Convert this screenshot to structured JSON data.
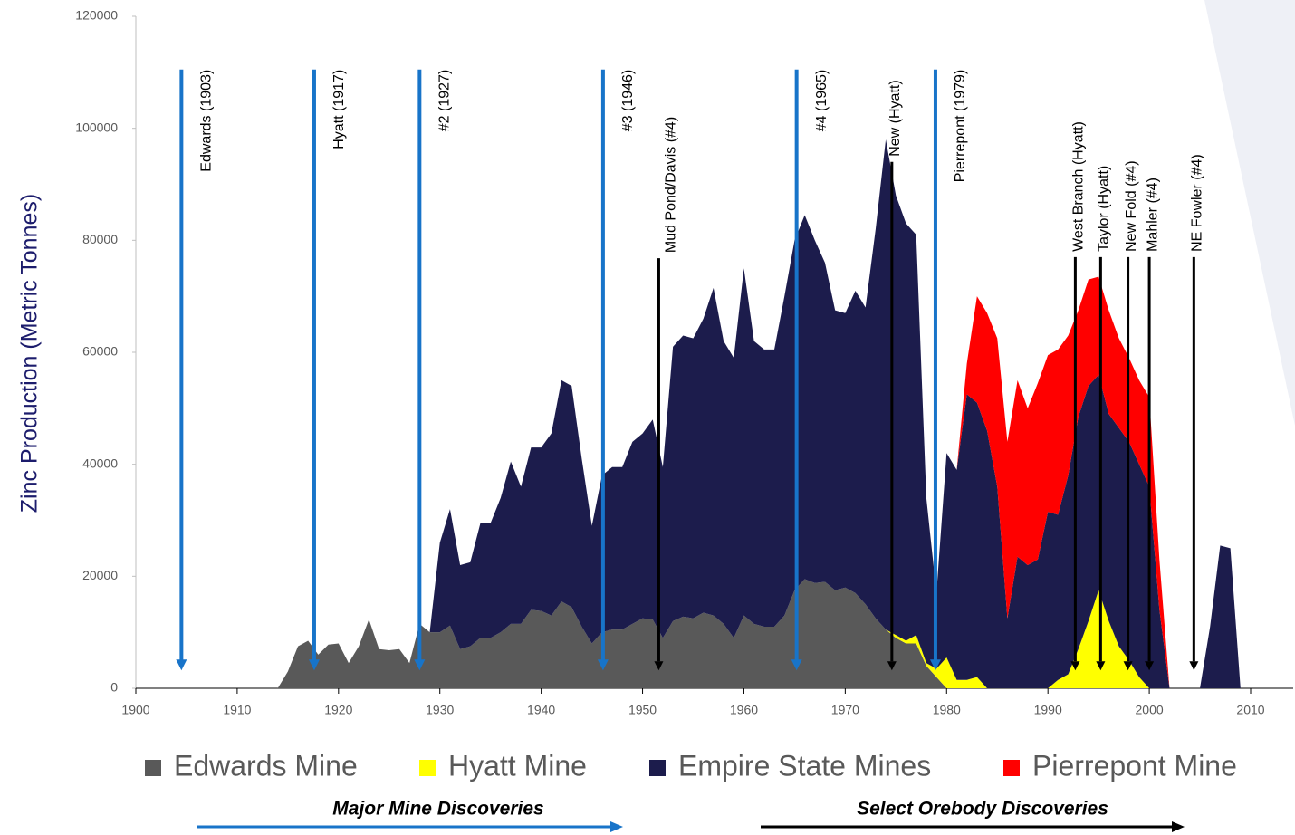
{
  "chart_data": {
    "type": "stacked_area",
    "y_label": "Zinc Production (Metric Tonnes)",
    "x": [
      1914,
      1915,
      1916,
      1917,
      1918,
      1919,
      1920,
      1921,
      1922,
      1923,
      1924,
      1925,
      1926,
      1927,
      1928,
      1929,
      1930,
      1931,
      1932,
      1933,
      1934,
      1935,
      1936,
      1937,
      1938,
      1939,
      1940,
      1941,
      1942,
      1943,
      1944,
      1945,
      1946,
      1947,
      1948,
      1949,
      1950,
      1951,
      1952,
      1953,
      1954,
      1955,
      1956,
      1957,
      1958,
      1959,
      1960,
      1961,
      1962,
      1963,
      1964,
      1965,
      1966,
      1967,
      1968,
      1969,
      1970,
      1971,
      1972,
      1973,
      1974,
      1975,
      1976,
      1977,
      1978,
      1979,
      1980,
      1981,
      1982,
      1983,
      1984,
      1985,
      1986,
      1987,
      1988,
      1989,
      1990,
      1991,
      1992,
      1993,
      1994,
      1995,
      1996,
      1997,
      1998,
      1999,
      2000,
      2001,
      2002,
      2003,
      2004,
      2005,
      2006,
      2007,
      2008,
      2009
    ],
    "series": [
      {
        "name": "Edwards Mine",
        "color": "#595959",
        "values": [
          0,
          3000,
          7500,
          8500,
          6000,
          7800,
          8000,
          4500,
          7500,
          12300,
          7000,
          6800,
          7000,
          4500,
          11500,
          10000,
          10000,
          11200,
          7000,
          7500,
          9000,
          9000,
          10000,
          11500,
          11500,
          14000,
          13800,
          13000,
          15500,
          14500,
          11000,
          8000,
          10000,
          10500,
          10500,
          11500,
          12500,
          12300,
          9000,
          12000,
          12800,
          12500,
          13500,
          13000,
          11500,
          9000,
          13000,
          11500,
          11000,
          11000,
          13000,
          17500,
          19500,
          18800,
          19000,
          17500,
          18000,
          17000,
          15000,
          12500,
          10500,
          9000,
          8000,
          8000,
          4000,
          2000,
          0,
          0,
          0,
          0,
          0,
          0,
          0,
          0,
          0,
          0,
          0,
          0,
          0,
          0,
          0,
          0,
          0,
          0,
          0,
          0,
          0,
          0,
          0,
          0,
          0,
          0,
          0,
          0,
          0,
          0
        ]
      },
      {
        "name": "Hyatt Mine",
        "color": "#ffff00",
        "values": [
          0,
          0,
          0,
          0,
          0,
          0,
          0,
          0,
          0,
          0,
          0,
          0,
          0,
          0,
          0,
          0,
          0,
          0,
          0,
          0,
          0,
          0,
          0,
          0,
          0,
          0,
          0,
          0,
          0,
          0,
          0,
          0,
          0,
          0,
          0,
          0,
          0,
          0,
          0,
          0,
          0,
          0,
          0,
          0,
          0,
          0,
          0,
          0,
          0,
          0,
          0,
          0,
          0,
          0,
          0,
          0,
          0,
          0,
          0,
          0,
          0,
          500,
          500,
          1500,
          500,
          1500,
          5500,
          1500,
          1500,
          2000,
          0,
          0,
          0,
          0,
          0,
          0,
          0,
          1500,
          2500,
          7000,
          12000,
          17500,
          12000,
          7500,
          5000,
          2000,
          0,
          0,
          0,
          0,
          0,
          0,
          0,
          0,
          0,
          0
        ]
      },
      {
        "name": "Empire State Mines",
        "color": "#1c1c4c",
        "values": [
          0,
          0,
          0,
          0,
          0,
          0,
          0,
          0,
          0,
          0,
          0,
          0,
          0,
          0,
          0,
          0,
          16000,
          20800,
          15000,
          15000,
          20500,
          20500,
          24000,
          29000,
          24500,
          29000,
          29200,
          32500,
          39500,
          39500,
          30000,
          21000,
          28000,
          29000,
          29000,
          32500,
          33000,
          35700,
          30500,
          49000,
          50200,
          50000,
          52500,
          58500,
          50500,
          50000,
          62000,
          50500,
          49500,
          49500,
          57000,
          62500,
          65000,
          61200,
          57000,
          50000,
          49000,
          54000,
          53000,
          69500,
          87500,
          78500,
          74500,
          71500,
          29500,
          13500,
          36500,
          37500,
          51000,
          49000,
          46000,
          36000,
          12500,
          23500,
          22000,
          23000,
          31500,
          29500,
          35500,
          41500,
          42000,
          38500,
          37000,
          39000,
          39000,
          38000,
          36000,
          14000,
          0,
          0,
          0,
          0,
          11000,
          25500,
          25000,
          0
        ]
      },
      {
        "name": "Pierrepont Mine",
        "color": "#ff0000",
        "values": [
          0,
          0,
          0,
          0,
          0,
          0,
          0,
          0,
          0,
          0,
          0,
          0,
          0,
          0,
          0,
          0,
          0,
          0,
          0,
          0,
          0,
          0,
          0,
          0,
          0,
          0,
          0,
          0,
          0,
          0,
          0,
          0,
          0,
          0,
          0,
          0,
          0,
          0,
          0,
          0,
          0,
          0,
          0,
          0,
          0,
          0,
          0,
          0,
          0,
          0,
          0,
          0,
          0,
          0,
          0,
          0,
          0,
          0,
          0,
          0,
          0,
          0,
          0,
          0,
          0,
          0,
          0,
          0,
          5500,
          19000,
          21000,
          26500,
          31500,
          31500,
          28000,
          31500,
          28000,
          29500,
          25000,
          19000,
          19000,
          17500,
          18500,
          16000,
          15000,
          15000,
          16000,
          9000,
          0,
          0,
          0,
          0,
          0,
          0,
          0,
          0
        ]
      }
    ],
    "xlim": [
      1900,
      2014
    ],
    "ylim": [
      0,
      120000
    ],
    "xticks": [
      1900,
      1910,
      1920,
      1930,
      1940,
      1950,
      1960,
      1970,
      1980,
      1990,
      2000,
      2010
    ],
    "yticks": [
      0,
      20000,
      40000,
      60000,
      80000,
      100000,
      120000
    ],
    "legend": "bottom",
    "annotations": [
      {
        "text": "Edwards (1903)",
        "x": 1904.5,
        "y_top": 110500,
        "y_bottom": 3200,
        "color": "#1874c9"
      },
      {
        "text": "Hyatt (1917)",
        "x": 1917.6,
        "y_top": 110500,
        "y_bottom": 3200,
        "color": "#1874c9"
      },
      {
        "text": "#2 (1927)",
        "x": 1928,
        "y_top": 110500,
        "y_bottom": 3200,
        "color": "#1874c9"
      },
      {
        "text": "#3 (1946)",
        "x": 1946.1,
        "y_top": 110500,
        "y_bottom": 3200,
        "color": "#1874c9"
      },
      {
        "text": "#4 (1965)",
        "x": 1965.2,
        "y_top": 110500,
        "y_bottom": 3200,
        "color": "#1874c9"
      },
      {
        "text": "Pierrepont (1979)",
        "x": 1978.9,
        "y_top": 110500,
        "y_bottom": 3200,
        "color": "#1874c9"
      },
      {
        "text": "Mud Pond/Davis (#4)",
        "x": 1951.6,
        "y_top": 76800,
        "y_bottom": 3200,
        "color": "#000000"
      },
      {
        "text": "New (Hyatt)",
        "x": 1974.6,
        "y_top": 94000,
        "y_bottom": 3200,
        "color": "#000000"
      },
      {
        "text": "West Branch (Hyatt)",
        "x": 1992.7,
        "y_top": 77000,
        "y_bottom": 3200,
        "color": "#000000"
      },
      {
        "text": "Taylor (Hyatt)",
        "x": 1995.2,
        "y_top": 77000,
        "y_bottom": 3200,
        "color": "#000000"
      },
      {
        "text": "New Fold (#4)",
        "x": 1997.9,
        "y_top": 77000,
        "y_bottom": 3200,
        "color": "#000000"
      },
      {
        "text": "Mahler (#4)",
        "x": 2000,
        "y_top": 77000,
        "y_bottom": 3200,
        "color": "#000000"
      },
      {
        "text": "NE Fowler (#4)",
        "x": 2004.4,
        "y_top": 77000,
        "y_bottom": 3200,
        "color": "#000000"
      }
    ],
    "footnotes": [
      {
        "text": "Major Mine Discoveries",
        "color": "#1874c9"
      },
      {
        "text": "Select Orebody Discoveries",
        "color": "#000000"
      }
    ]
  }
}
